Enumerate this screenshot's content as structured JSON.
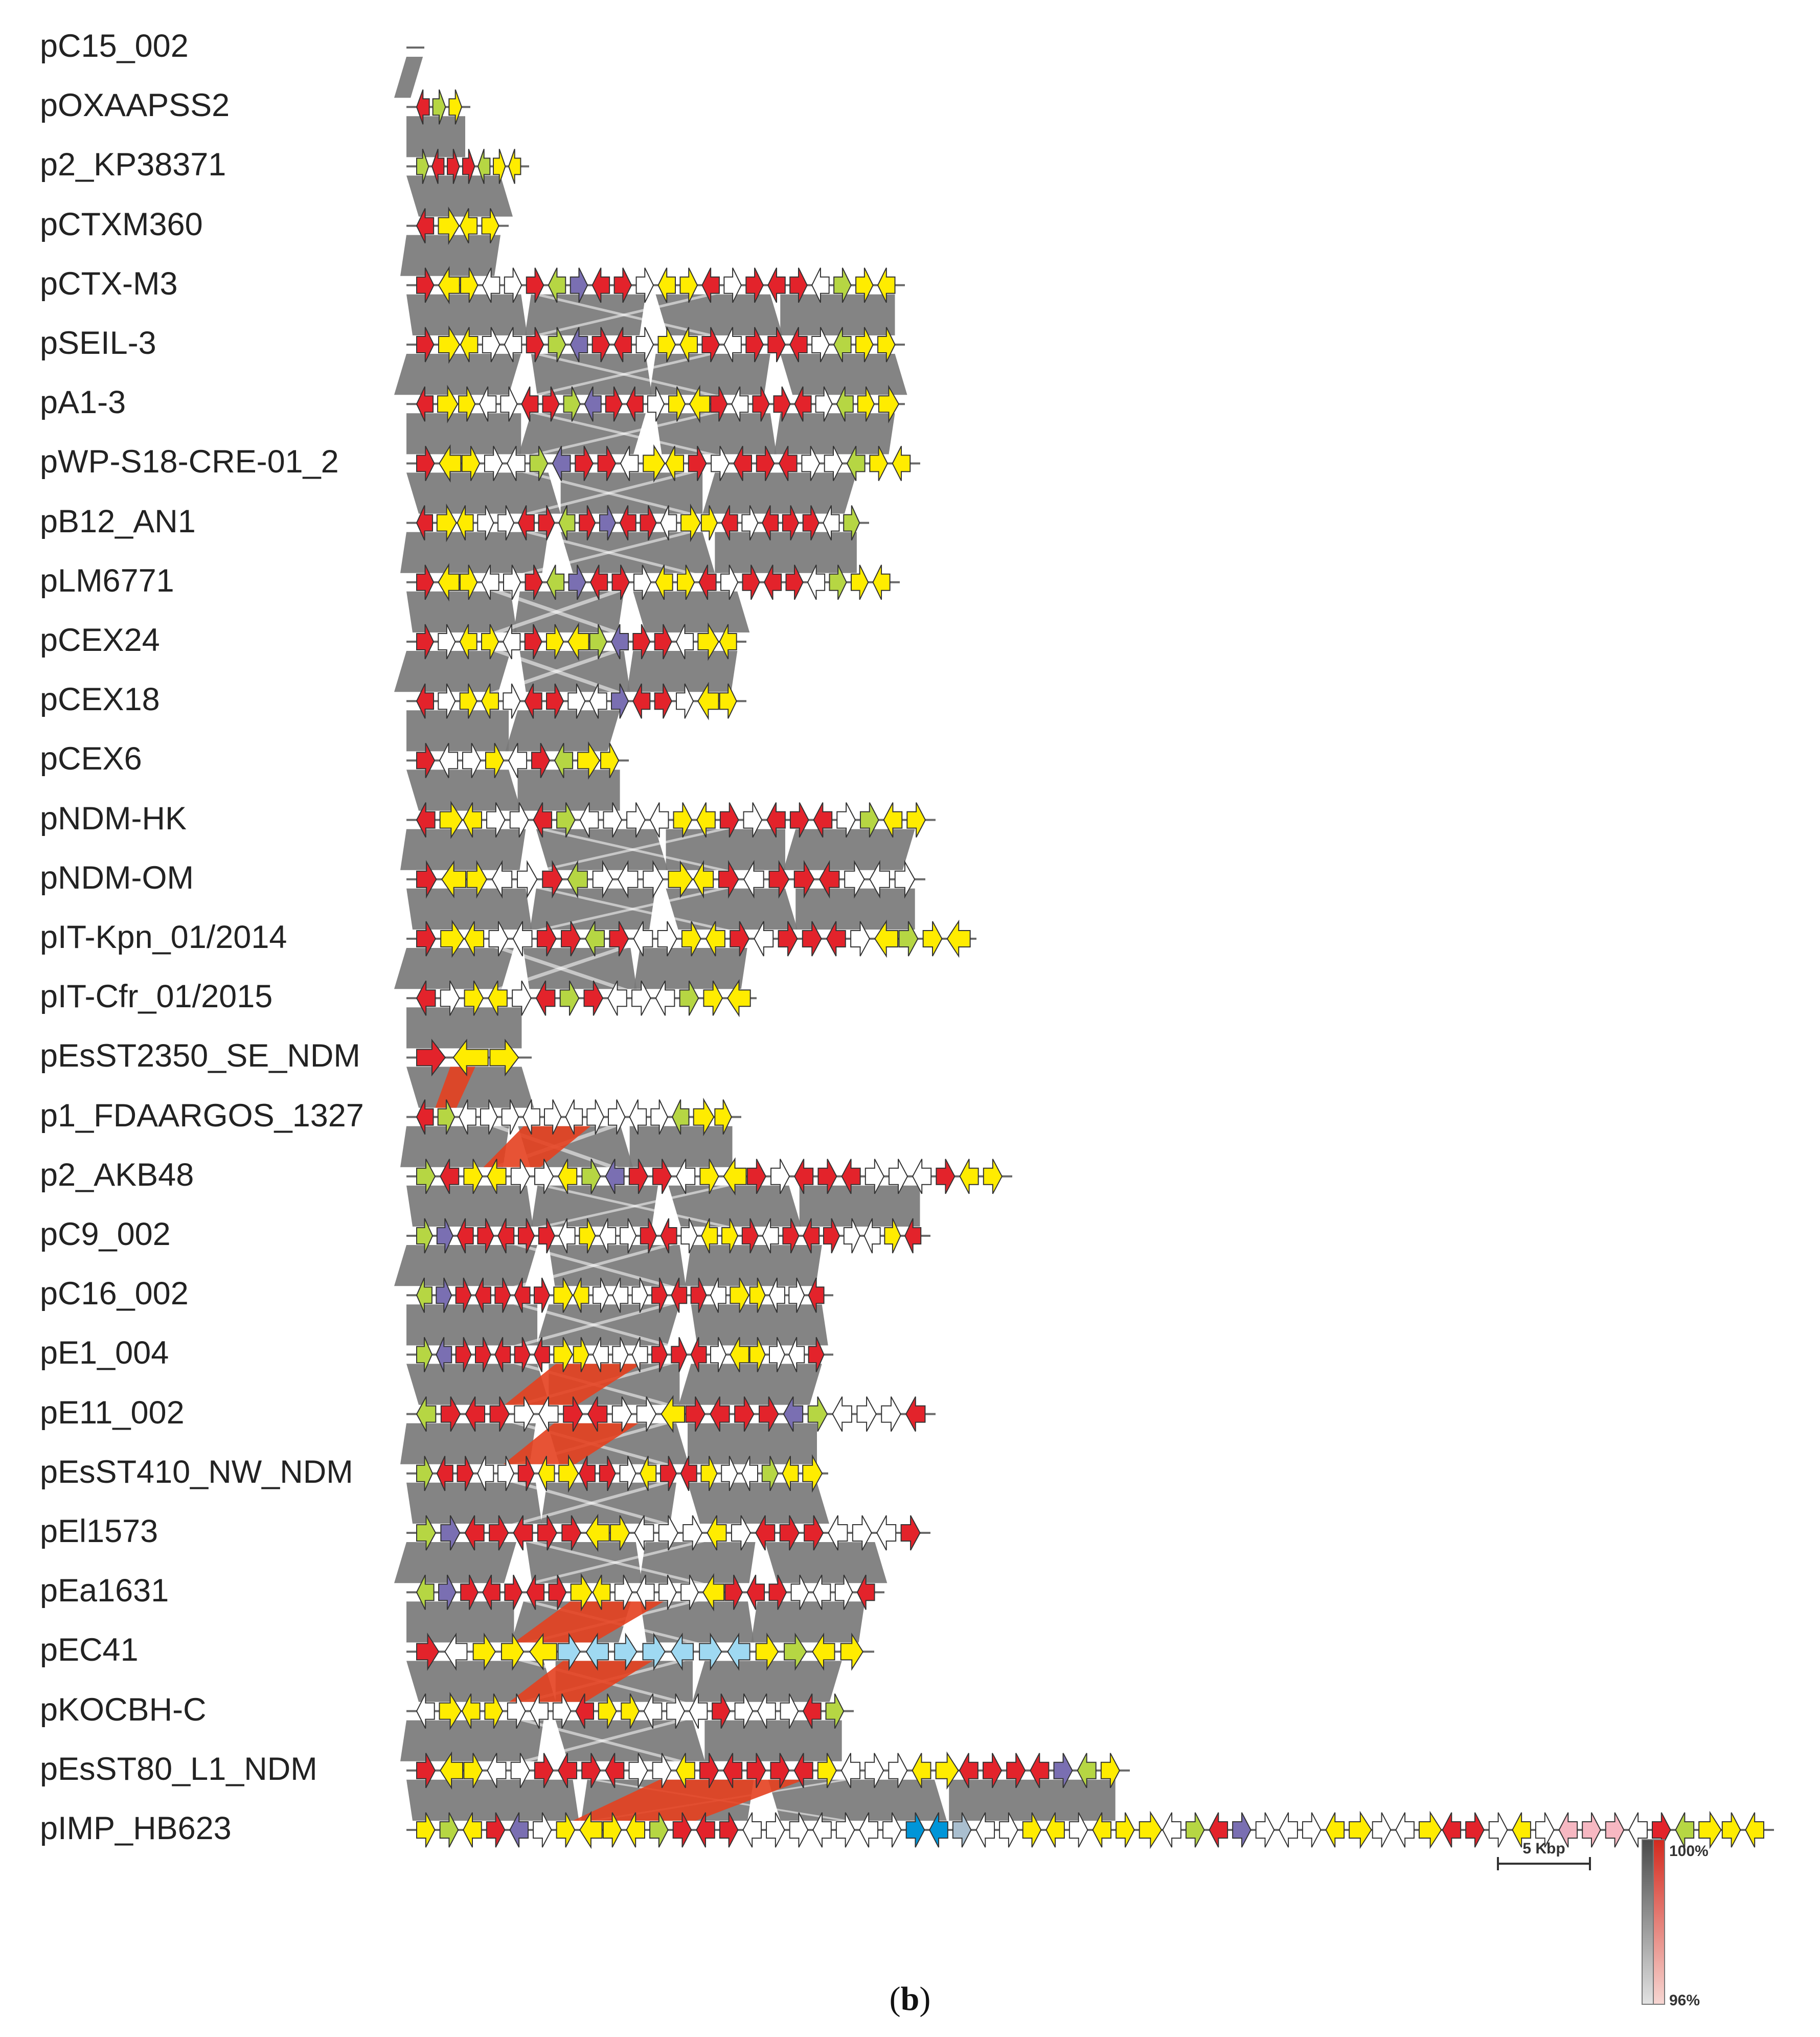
{
  "figure": {
    "panel_label": "b",
    "panel_paren_open": "(",
    "panel_paren_close": ")"
  },
  "tracks": [
    {
      "name": "pC15_002"
    },
    {
      "name": "pOXAAPSS2"
    },
    {
      "name": "p2_KP38371"
    },
    {
      "name": "pCTXM360"
    },
    {
      "name": "pCTX-M3"
    },
    {
      "name": "pSEIL-3"
    },
    {
      "name": "pA1-3"
    },
    {
      "name": "pWP-S18-CRE-01_2"
    },
    {
      "name": "pB12_AN1"
    },
    {
      "name": "pLM6771"
    },
    {
      "name": "pCEX24"
    },
    {
      "name": "pCEX18"
    },
    {
      "name": "pCEX6"
    },
    {
      "name": "pNDM-HK"
    },
    {
      "name": "pNDM-OM"
    },
    {
      "name": "pIT-Kpn_01/2014"
    },
    {
      "name": "pIT-Cfr_01/2015"
    },
    {
      "name": "pEsST2350_SE_NDM"
    },
    {
      "name": "p1_FDAARGOS_1327"
    },
    {
      "name": "p2_AKB48"
    },
    {
      "name": "pC9_002"
    },
    {
      "name": "pC16_002"
    },
    {
      "name": "pE1_004"
    },
    {
      "name": "pE11_002"
    },
    {
      "name": "pEsST410_NW_NDM"
    },
    {
      "name": "pEl1573"
    },
    {
      "name": "pEa1631"
    },
    {
      "name": "pEC41"
    },
    {
      "name": "pKOCBH-C"
    },
    {
      "name": "pEsST80_L1_NDM"
    },
    {
      "name": "pIMP_HB623"
    }
  ],
  "scale_bar": {
    "label": "5 Kbp",
    "kbp": 5
  },
  "identity_legend": {
    "max_label": "100%",
    "min_label": "96%"
  },
  "colors": {
    "gene_yellow": "#ffec00",
    "gene_red": "#e3232b",
    "gene_purple": "#7a6fb2",
    "gene_green": "#b6d643",
    "gene_blue": "#0095d8",
    "gene_lightblue": "#9fd9f2",
    "gene_pink": "#f7b8c2",
    "gene_steel": "#aabfcf",
    "gene_white": "#ffffff",
    "homology_gray": "#7a7a7a",
    "homology_red": "#e4401f"
  }
}
